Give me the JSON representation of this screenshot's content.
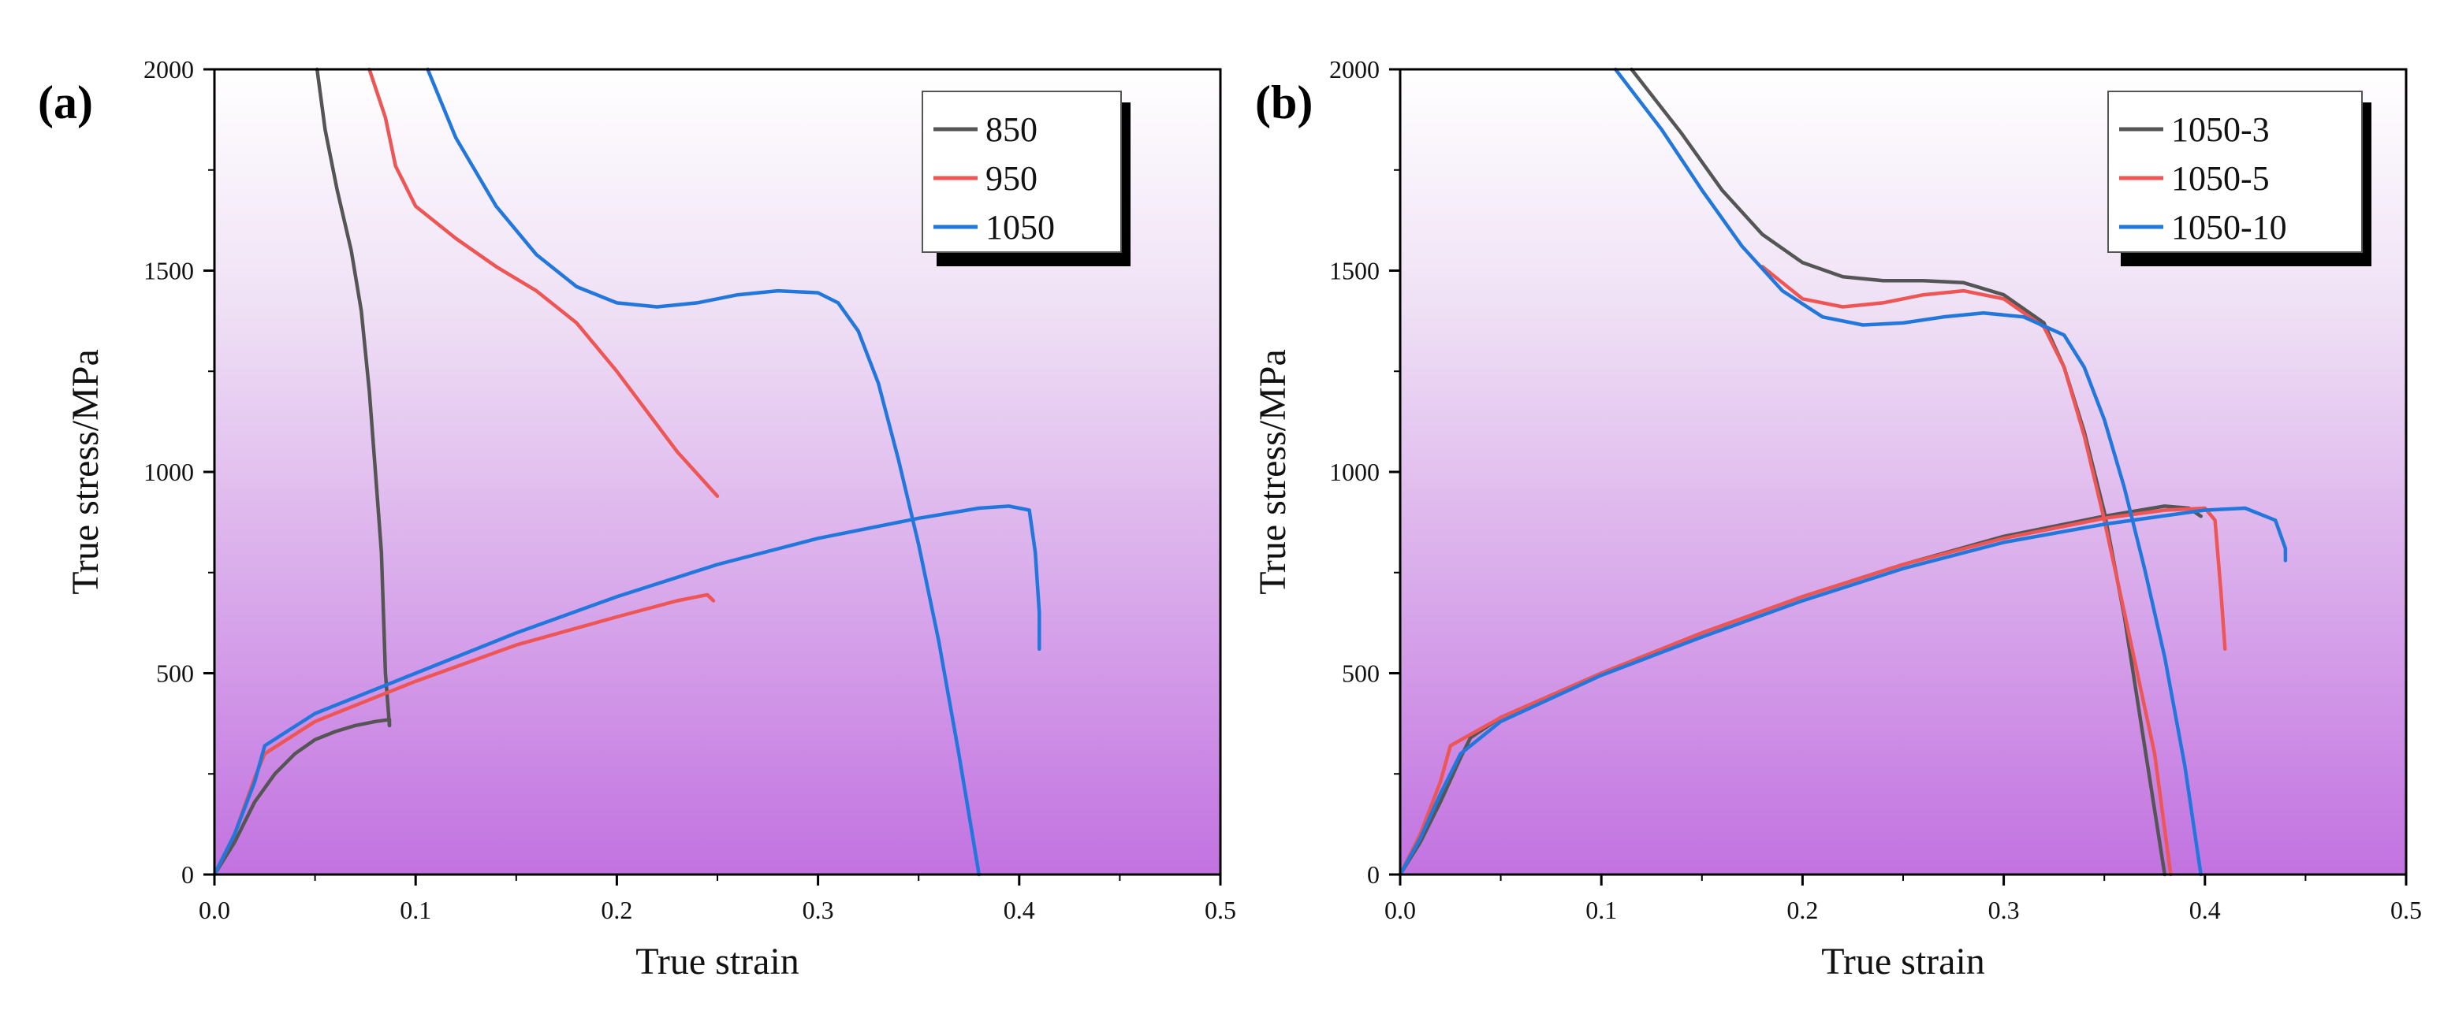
{
  "chart_data": [
    {
      "type": "line",
      "panel_label": "(a)",
      "xlabel": "True strain",
      "ylabel": "True stress/MPa",
      "xlim": [
        0,
        0.5
      ],
      "ylim": [
        0,
        2000
      ],
      "xticks": [
        0.0,
        0.1,
        0.2,
        0.3,
        0.4,
        0.5
      ],
      "xtick_labels": [
        "0.0",
        "0.1",
        "0.2",
        "0.3",
        "0.4",
        "0.5"
      ],
      "yticks": [
        0,
        500,
        1000,
        1500,
        2000
      ],
      "ytick_labels": [
        "0",
        "500",
        "1000",
        "1500",
        "2000"
      ],
      "legend_position": "top-right",
      "series": [
        {
          "name": "850",
          "color": "#555555",
          "segments": [
            [
              [
                0,
                0
              ],
              [
                0.01,
                80
              ],
              [
                0.02,
                180
              ],
              [
                0.03,
                250
              ],
              [
                0.04,
                300
              ],
              [
                0.05,
                335
              ],
              [
                0.06,
                355
              ],
              [
                0.07,
                370
              ],
              [
                0.08,
                380
              ],
              [
                0.087,
                385
              ],
              [
                0.087,
                370
              ]
            ],
            [
              [
                0.087,
                370
              ],
              [
                0.085,
                500
              ],
              [
                0.083,
                800
              ],
              [
                0.08,
                1000
              ],
              [
                0.077,
                1200
              ],
              [
                0.073,
                1400
              ],
              [
                0.068,
                1550
              ],
              [
                0.061,
                1700
              ],
              [
                0.055,
                1850
              ],
              [
                0.051,
                2000
              ]
            ]
          ]
        },
        {
          "name": "950",
          "color": "#ee5555",
          "segments": [
            [
              [
                0,
                0
              ],
              [
                0.01,
                100
              ],
              [
                0.02,
                240
              ],
              [
                0.025,
                300
              ],
              [
                0.05,
                380
              ],
              [
                0.1,
                480
              ],
              [
                0.15,
                570
              ],
              [
                0.2,
                640
              ],
              [
                0.23,
                680
              ],
              [
                0.245,
                695
              ],
              [
                0.248,
                680
              ]
            ],
            [
              [
                0.25,
                940
              ],
              [
                0.23,
                1050
              ],
              [
                0.2,
                1250
              ],
              [
                0.18,
                1370
              ],
              [
                0.16,
                1450
              ],
              [
                0.14,
                1510
              ],
              [
                0.12,
                1580
              ],
              [
                0.1,
                1660
              ],
              [
                0.09,
                1760
              ],
              [
                0.085,
                1880
              ],
              [
                0.077,
                2000
              ]
            ]
          ]
        },
        {
          "name": "1050",
          "color": "#2277dd",
          "segments": [
            [
              [
                0,
                0
              ],
              [
                0.01,
                100
              ],
              [
                0.02,
                230
              ],
              [
                0.025,
                320
              ],
              [
                0.05,
                400
              ],
              [
                0.1,
                500
              ],
              [
                0.15,
                600
              ],
              [
                0.2,
                690
              ],
              [
                0.25,
                770
              ],
              [
                0.3,
                835
              ],
              [
                0.35,
                885
              ],
              [
                0.38,
                910
              ],
              [
                0.395,
                915
              ],
              [
                0.405,
                905
              ],
              [
                0.408,
                800
              ],
              [
                0.41,
                650
              ],
              [
                0.41,
                560
              ]
            ],
            [
              [
                0.38,
                0
              ],
              [
                0.37,
                300
              ],
              [
                0.36,
                580
              ],
              [
                0.35,
                820
              ],
              [
                0.34,
                1030
              ],
              [
                0.33,
                1220
              ],
              [
                0.32,
                1350
              ],
              [
                0.31,
                1420
              ],
              [
                0.3,
                1445
              ],
              [
                0.28,
                1450
              ],
              [
                0.26,
                1440
              ],
              [
                0.24,
                1420
              ],
              [
                0.22,
                1410
              ],
              [
                0.2,
                1420
              ],
              [
                0.18,
                1460
              ],
              [
                0.16,
                1540
              ],
              [
                0.14,
                1660
              ],
              [
                0.12,
                1830
              ],
              [
                0.106,
                2000
              ]
            ]
          ]
        }
      ]
    },
    {
      "type": "line",
      "panel_label": "(b)",
      "xlabel": "True strain",
      "ylabel": "True stress/MPa",
      "xlim": [
        0,
        0.5
      ],
      "ylim": [
        0,
        2000
      ],
      "xticks": [
        0.0,
        0.1,
        0.2,
        0.3,
        0.4,
        0.5
      ],
      "xtick_labels": [
        "0.0",
        "0.1",
        "0.2",
        "0.3",
        "0.4",
        "0.5"
      ],
      "yticks": [
        0,
        500,
        1000,
        1500,
        2000
      ],
      "ytick_labels": [
        "0",
        "500",
        "1000",
        "1500",
        "2000"
      ],
      "legend_position": "top-right",
      "series": [
        {
          "name": "1050-3",
          "color": "#555555",
          "segments": [
            [
              [
                0,
                0
              ],
              [
                0.01,
                80
              ],
              [
                0.02,
                180
              ],
              [
                0.03,
                290
              ],
              [
                0.035,
                340
              ],
              [
                0.05,
                390
              ],
              [
                0.1,
                500
              ],
              [
                0.15,
                600
              ],
              [
                0.2,
                690
              ],
              [
                0.25,
                770
              ],
              [
                0.3,
                840
              ],
              [
                0.35,
                890
              ],
              [
                0.38,
                915
              ],
              [
                0.392,
                910
              ],
              [
                0.398,
                890
              ]
            ],
            [
              [
                0.38,
                0
              ],
              [
                0.37,
                320
              ],
              [
                0.36,
                640
              ],
              [
                0.35,
                900
              ],
              [
                0.34,
                1100
              ],
              [
                0.33,
                1260
              ],
              [
                0.32,
                1370
              ],
              [
                0.3,
                1440
              ],
              [
                0.28,
                1470
              ],
              [
                0.26,
                1475
              ],
              [
                0.24,
                1475
              ],
              [
                0.22,
                1485
              ],
              [
                0.2,
                1520
              ],
              [
                0.18,
                1590
              ],
              [
                0.16,
                1700
              ],
              [
                0.14,
                1840
              ],
              [
                0.115,
                2000
              ]
            ]
          ]
        },
        {
          "name": "1050-5",
          "color": "#ee5555",
          "segments": [
            [
              [
                0,
                0
              ],
              [
                0.01,
                100
              ],
              [
                0.02,
                230
              ],
              [
                0.025,
                320
              ],
              [
                0.05,
                390
              ],
              [
                0.1,
                500
              ],
              [
                0.15,
                600
              ],
              [
                0.2,
                690
              ],
              [
                0.25,
                770
              ],
              [
                0.3,
                835
              ],
              [
                0.35,
                885
              ],
              [
                0.38,
                905
              ],
              [
                0.4,
                910
              ],
              [
                0.405,
                880
              ],
              [
                0.408,
                700
              ],
              [
                0.41,
                560
              ]
            ],
            [
              [
                0.383,
                0
              ],
              [
                0.375,
                300
              ],
              [
                0.36,
                650
              ],
              [
                0.35,
                880
              ],
              [
                0.34,
                1090
              ],
              [
                0.33,
                1260
              ],
              [
                0.32,
                1360
              ],
              [
                0.3,
                1430
              ],
              [
                0.28,
                1450
              ],
              [
                0.26,
                1440
              ],
              [
                0.24,
                1420
              ],
              [
                0.22,
                1410
              ],
              [
                0.2,
                1430
              ],
              [
                0.18,
                1510
              ]
            ]
          ]
        },
        {
          "name": "1050-10",
          "color": "#2277dd",
          "segments": [
            [
              [
                0,
                0
              ],
              [
                0.01,
                90
              ],
              [
                0.02,
                200
              ],
              [
                0.03,
                300
              ],
              [
                0.05,
                380
              ],
              [
                0.1,
                495
              ],
              [
                0.15,
                590
              ],
              [
                0.2,
                680
              ],
              [
                0.25,
                760
              ],
              [
                0.3,
                825
              ],
              [
                0.35,
                870
              ],
              [
                0.4,
                905
              ],
              [
                0.42,
                910
              ],
              [
                0.435,
                880
              ],
              [
                0.44,
                810
              ],
              [
                0.44,
                780
              ]
            ],
            [
              [
                0.398,
                0
              ],
              [
                0.39,
                270
              ],
              [
                0.38,
                540
              ],
              [
                0.37,
                760
              ],
              [
                0.36,
                960
              ],
              [
                0.35,
                1130
              ],
              [
                0.34,
                1260
              ],
              [
                0.33,
                1340
              ],
              [
                0.31,
                1385
              ],
              [
                0.29,
                1395
              ],
              [
                0.27,
                1385
              ],
              [
                0.25,
                1370
              ],
              [
                0.23,
                1365
              ],
              [
                0.21,
                1385
              ],
              [
                0.19,
                1450
              ],
              [
                0.17,
                1560
              ],
              [
                0.15,
                1700
              ],
              [
                0.13,
                1850
              ],
              [
                0.107,
                2000
              ]
            ]
          ]
        }
      ]
    }
  ]
}
